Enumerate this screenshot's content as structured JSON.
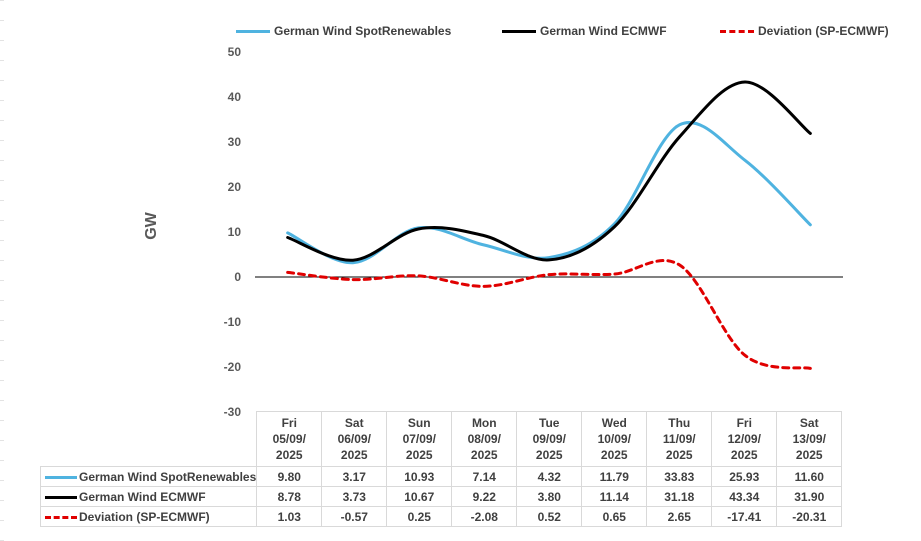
{
  "chart_data": {
    "type": "line",
    "title": "",
    "xlabel": "",
    "ylabel": "GW",
    "ylim": [
      -30,
      50
    ],
    "yticks": [
      50,
      40,
      30,
      20,
      10,
      0,
      -10,
      -20,
      -30
    ],
    "categories": [
      [
        "Fri",
        "05/09/",
        "2025"
      ],
      [
        "Sat",
        "06/09/",
        "2025"
      ],
      [
        "Sun",
        "07/09/",
        "2025"
      ],
      [
        "Mon",
        "08/09/",
        "2025"
      ],
      [
        "Tue",
        "09/09/",
        "2025"
      ],
      [
        "Wed",
        "10/09/",
        "2025"
      ],
      [
        "Thu",
        "11/09/",
        "2025"
      ],
      [
        "Fri",
        "12/09/",
        "2025"
      ],
      [
        "Sat",
        "13/09/",
        "2025"
      ]
    ],
    "series": [
      {
        "name": "German Wind SpotRenewables",
        "color": "#4fb3e0",
        "style": "solid",
        "values": [
          9.8,
          3.17,
          10.93,
          7.14,
          4.32,
          11.79,
          33.83,
          25.93,
          11.6
        ],
        "labels": [
          "9.80",
          "3.17",
          "10.93",
          "7.14",
          "4.32",
          "11.79",
          "33.83",
          "25.93",
          "11.60"
        ]
      },
      {
        "name": "German Wind ECMWF",
        "color": "#000000",
        "style": "solid",
        "values": [
          8.78,
          3.73,
          10.67,
          9.22,
          3.8,
          11.14,
          31.18,
          43.34,
          31.9
        ],
        "labels": [
          "8.78",
          "3.73",
          "10.67",
          "9.22",
          "3.80",
          "11.14",
          "31.18",
          "43.34",
          "31.90"
        ]
      },
      {
        "name": "Deviation (SP-ECMWF)",
        "color": "#e00000",
        "style": "dashed",
        "values": [
          1.03,
          -0.57,
          0.25,
          -2.08,
          0.52,
          0.65,
          2.65,
          -17.41,
          -20.31
        ],
        "labels": [
          "1.03",
          "-0.57",
          "0.25",
          "-2.08",
          "0.52",
          "0.65",
          "2.65",
          "-17.41",
          "-20.31"
        ]
      }
    ],
    "legend": "top"
  }
}
